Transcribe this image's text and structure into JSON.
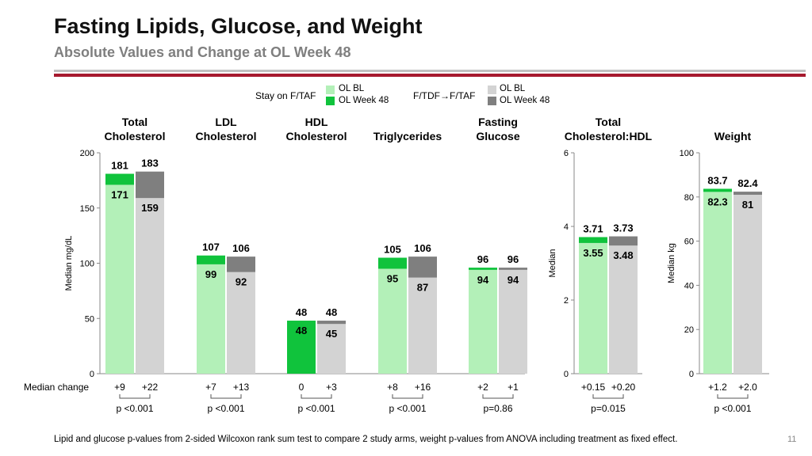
{
  "header": {
    "title": "Fasting Lipids, Glucose, and Weight",
    "subtitle": "Absolute Values and Change at OL Week 48"
  },
  "legend": {
    "group1": "Stay on F/TAF",
    "group2": "F/TDF→F/TAF",
    "bl": "OL BL",
    "wk48": "OL Week 48"
  },
  "colors": {
    "stay_bl": "#b3f0b8",
    "stay_wk48": "#10c33c",
    "switch_bl": "#d3d3d3",
    "switch_wk48": "#7f7f7f",
    "rule_red": "#a6192e"
  },
  "footnote": "Lipid and glucose p-values from 2-sided Wilcoxon rank sum test to compare 2 study arms, weight p-values from ANOVA including treatment as fixed effect.",
  "page_number": "11",
  "chart_data": [
    {
      "type": "bar",
      "ylabel": "Median mg/dL",
      "ylim": [
        0,
        200
      ],
      "yticks": [
        "0",
        "50",
        "100",
        "150",
        "200"
      ],
      "row_label": "Median change",
      "categories": [
        {
          "name": "Total\nCholesterol",
          "stay_bl": 171,
          "stay_wk48": 181,
          "switch_bl": 159,
          "switch_wk48": 183,
          "stay_change": "+9",
          "switch_change": "+22",
          "p": "p <0.001"
        },
        {
          "name": "LDL\nCholesterol",
          "stay_bl": 99,
          "stay_wk48": 107,
          "switch_bl": 92,
          "switch_wk48": 106,
          "stay_change": "+7",
          "switch_change": "+13",
          "p": "p <0.001"
        },
        {
          "name": "HDL\nCholesterol",
          "stay_bl": 48,
          "stay_wk48": 48,
          "switch_bl": 45,
          "switch_wk48": 48,
          "stay_change": "0",
          "switch_change": "+3",
          "p": "p <0.001"
        },
        {
          "name": "Triglycerides",
          "stay_bl": 95,
          "stay_wk48": 105,
          "switch_bl": 87,
          "switch_wk48": 106,
          "stay_change": "+8",
          "switch_change": "+16",
          "p": "p <0.001"
        },
        {
          "name": "Fasting\nGlucose",
          "stay_bl": 94,
          "stay_wk48": 96,
          "switch_bl": 94,
          "switch_wk48": 96,
          "stay_change": "+2",
          "switch_change": "+1",
          "p": "p=0.86"
        }
      ]
    },
    {
      "type": "bar",
      "ylabel": "Median",
      "ylim": [
        0,
        6
      ],
      "yticks": [
        "0",
        "2",
        "4",
        "6"
      ],
      "categories": [
        {
          "name": "Total\nCholesterol:HDL",
          "stay_bl": 3.55,
          "stay_wk48": 3.71,
          "switch_bl": 3.48,
          "switch_wk48": 3.73,
          "stay_change": "+0.15",
          "switch_change": "+0.20",
          "p": "p=0.015"
        }
      ]
    },
    {
      "type": "bar",
      "ylabel": "Median kg",
      "ylim": [
        0,
        100
      ],
      "yticks": [
        "0",
        "20",
        "40",
        "60",
        "80",
        "100"
      ],
      "categories": [
        {
          "name": "Weight",
          "stay_bl": 82.3,
          "stay_wk48": 83.7,
          "switch_bl": 81,
          "switch_wk48": 82.4,
          "stay_change": "+1.2",
          "switch_change": "+2.0",
          "p": "p <0.001"
        }
      ]
    }
  ]
}
